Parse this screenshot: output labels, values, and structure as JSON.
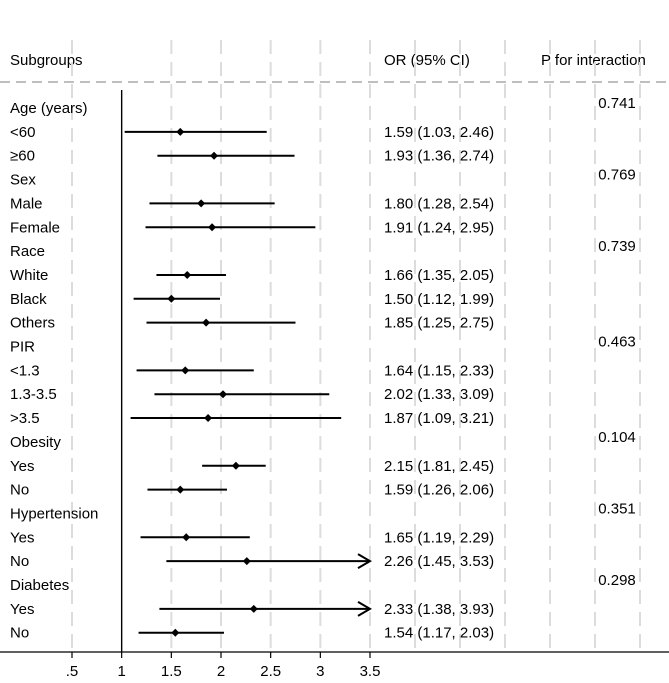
{
  "chart_data": {
    "type": "forest",
    "headers": {
      "subgroups": "Subgroups",
      "or": "OR (95% CI)",
      "p": "P for interaction"
    },
    "x_ticks": [
      {
        "value": 0.5,
        "label": ".5"
      },
      {
        "value": 1,
        "label": "1"
      },
      {
        "value": 1.5,
        "label": "1.5"
      },
      {
        "value": 2,
        "label": "2"
      },
      {
        "value": 2.5,
        "label": "2.5"
      },
      {
        "value": 3,
        "label": "3"
      },
      {
        "value": 3.5,
        "label": "3.5"
      }
    ],
    "xlim": [
      0.5,
      3.5
    ],
    "reference_line": 1,
    "rows": [
      {
        "label": "Age (years)",
        "is_group": true,
        "p": "0.741"
      },
      {
        "label": "<60",
        "or": 1.59,
        "lo": 1.03,
        "hi": 2.46,
        "text": "1.59 (1.03, 2.46)"
      },
      {
        "label": "≥60",
        "or": 1.93,
        "lo": 1.36,
        "hi": 2.74,
        "text": "1.93 (1.36, 2.74)"
      },
      {
        "label": "Sex",
        "is_group": true,
        "p": "0.769"
      },
      {
        "label": "Male",
        "or": 1.8,
        "lo": 1.28,
        "hi": 2.54,
        "text": "1.80 (1.28, 2.54)"
      },
      {
        "label": "Female",
        "or": 1.91,
        "lo": 1.24,
        "hi": 2.95,
        "text": "1.91 (1.24, 2.95)"
      },
      {
        "label": "Race",
        "is_group": true,
        "p": "0.739"
      },
      {
        "label": "White",
        "or": 1.66,
        "lo": 1.35,
        "hi": 2.05,
        "text": "1.66 (1.35, 2.05)"
      },
      {
        "label": "Black",
        "or": 1.5,
        "lo": 1.12,
        "hi": 1.99,
        "text": "1.50 (1.12, 1.99)"
      },
      {
        "label": "Others",
        "or": 1.85,
        "lo": 1.25,
        "hi": 2.75,
        "text": "1.85 (1.25, 2.75)"
      },
      {
        "label": "PIR",
        "is_group": true,
        "p": "0.463"
      },
      {
        "label": "<1.3",
        "or": 1.64,
        "lo": 1.15,
        "hi": 2.33,
        "text": "1.64 (1.15, 2.33)"
      },
      {
        "label": "1.3-3.5",
        "or": 2.02,
        "lo": 1.33,
        "hi": 3.09,
        "text": "2.02 (1.33, 3.09)"
      },
      {
        "label": ">3.5",
        "or": 1.87,
        "lo": 1.09,
        "hi": 3.21,
        "text": "1.87 (1.09, 3.21)"
      },
      {
        "label": "Obesity",
        "is_group": true,
        "p": "0.104"
      },
      {
        "label": "Yes",
        "or": 2.15,
        "lo": 1.81,
        "hi": 2.45,
        "text": "2.15 (1.81, 2.45)"
      },
      {
        "label": "No",
        "or": 1.59,
        "lo": 1.26,
        "hi": 2.06,
        "text": "1.59 (1.26, 2.06)"
      },
      {
        "label": "Hypertension",
        "is_group": true,
        "p": "0.351"
      },
      {
        "label": "Yes",
        "or": 1.65,
        "lo": 1.19,
        "hi": 2.29,
        "text": "1.65 (1.19, 2.29)"
      },
      {
        "label": "No",
        "or": 2.26,
        "lo": 1.45,
        "hi": 3.53,
        "text": "2.26 (1.45, 3.53)"
      },
      {
        "label": "Diabetes",
        "is_group": true,
        "p": "0.298"
      },
      {
        "label": "Yes",
        "or": 2.33,
        "lo": 1.38,
        "hi": 3.93,
        "text": "2.33 (1.38, 3.93)"
      },
      {
        "label": "No",
        "or": 1.54,
        "lo": 1.17,
        "hi": 2.03,
        "text": "1.54 (1.17, 2.03)"
      }
    ]
  }
}
